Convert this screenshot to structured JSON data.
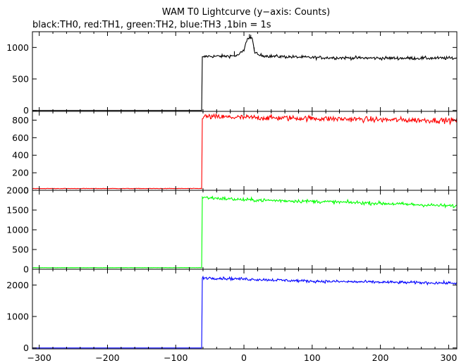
{
  "chart_data": {
    "type": "line",
    "title": "WAM T0 Lightcurve (y−axis: Counts)",
    "subtitle": "black:TH0, red:TH1, green:TH2, blue:TH3 ,1bin = 1s",
    "xlim": [
      -310,
      312
    ],
    "x_ticks": [
      -300,
      -200,
      -100,
      0,
      100,
      200,
      300
    ],
    "x_tick_labels": [
      "−300",
      "−200",
      "−100",
      "0",
      "100",
      "200",
      "300"
    ],
    "grid": false,
    "panels": [
      {
        "series_name": "TH0",
        "color": "#000000",
        "ylim": [
          -15,
          1250
        ],
        "y_ticks": [
          0,
          500,
          1000
        ],
        "y_tick_labels": [
          "0",
          "500",
          "1000"
        ],
        "background": 0,
        "step_time": -61,
        "level_points": [
          [
            -61,
            840
          ],
          [
            -55,
            860
          ],
          [
            -30,
            860
          ],
          [
            -10,
            870
          ],
          [
            0,
            950
          ],
          [
            5,
            1150
          ],
          [
            10,
            1150
          ],
          [
            12,
            1150
          ],
          [
            15,
            950
          ],
          [
            20,
            880
          ],
          [
            40,
            860
          ],
          [
            100,
            840
          ],
          [
            200,
            830
          ],
          [
            310,
            830
          ]
        ],
        "noise": 20,
        "peaks": [
          [
            -14,
            940
          ],
          [
            8,
            1210
          ],
          [
            10,
            1200
          ],
          [
            15,
            1000
          ]
        ]
      },
      {
        "series_name": "TH1",
        "color": "#ff0000",
        "ylim": [
          0,
          900
        ],
        "y_ticks": [
          0,
          200,
          400,
          600,
          800
        ],
        "y_tick_labels": [
          "0",
          "200",
          "400",
          "600",
          "800"
        ],
        "background": 20,
        "step_time": -61,
        "level_points": [
          [
            -61,
            840
          ],
          [
            0,
            830
          ],
          [
            100,
            820
          ],
          [
            200,
            805
          ],
          [
            310,
            795
          ]
        ],
        "noise": 25,
        "peaks": []
      },
      {
        "series_name": "TH2",
        "color": "#00ff00",
        "ylim": [
          0,
          2000
        ],
        "y_ticks": [
          0,
          500,
          1000,
          1500,
          2000
        ],
        "y_tick_labels": [
          "0",
          "500",
          "1000",
          "1500",
          "2000"
        ],
        "background": 40,
        "step_time": -61,
        "level_points": [
          [
            -61,
            1820
          ],
          [
            0,
            1760
          ],
          [
            100,
            1720
          ],
          [
            200,
            1670
          ],
          [
            310,
            1600
          ]
        ],
        "noise": 35,
        "peaks": []
      },
      {
        "series_name": "TH3",
        "color": "#0000ff",
        "ylim": [
          -30,
          2500
        ],
        "y_ticks": [
          0,
          1000,
          2000
        ],
        "y_tick_labels": [
          "0",
          "1000",
          "2000"
        ],
        "background": 0,
        "step_time": -61,
        "level_points": [
          [
            -61,
            2230
          ],
          [
            0,
            2190
          ],
          [
            100,
            2120
          ],
          [
            200,
            2090
          ],
          [
            310,
            2060
          ]
        ],
        "noise": 35,
        "peaks": []
      }
    ]
  }
}
